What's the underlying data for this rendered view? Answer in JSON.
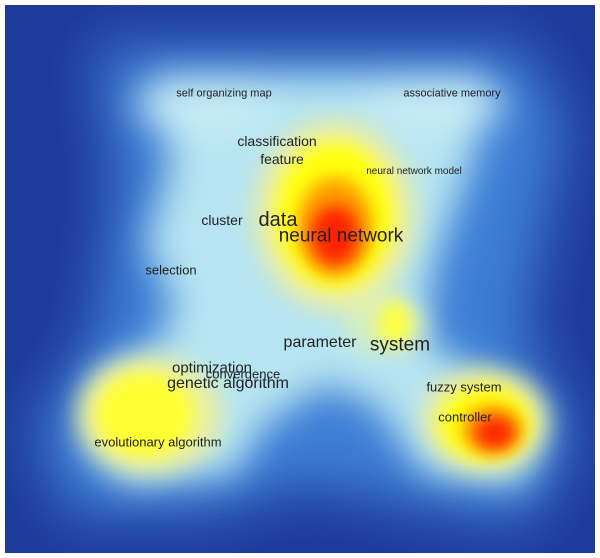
{
  "map": {
    "colors": {
      "background": "#1e3a9a",
      "low": "#3d7fd6",
      "mid": "#a8dcf0",
      "high": "#ffff00",
      "peak": "#ff2200"
    },
    "terms": [
      {
        "id": "self-organizing-map",
        "label": "self organizing map"
      },
      {
        "id": "associative-memory",
        "label": "associative memory"
      },
      {
        "id": "classification",
        "label": "classification"
      },
      {
        "id": "feature",
        "label": "feature"
      },
      {
        "id": "neural-network-model",
        "label": "neural network model"
      },
      {
        "id": "cluster",
        "label": "cluster"
      },
      {
        "id": "data",
        "label": "data"
      },
      {
        "id": "neural-network",
        "label": "neural network"
      },
      {
        "id": "selection",
        "label": "selection"
      },
      {
        "id": "parameter",
        "label": "parameter"
      },
      {
        "id": "system",
        "label": "system"
      },
      {
        "id": "optimization",
        "label": "optimization"
      },
      {
        "id": "convergence",
        "label": "convergence"
      },
      {
        "id": "genetic-algorithm",
        "label": "genetic algorithm"
      },
      {
        "id": "fuzzy-system",
        "label": "fuzzy system"
      },
      {
        "id": "controller",
        "label": "controller"
      },
      {
        "id": "evolutionary-algorithm",
        "label": "evolutionary algorithm"
      }
    ]
  }
}
